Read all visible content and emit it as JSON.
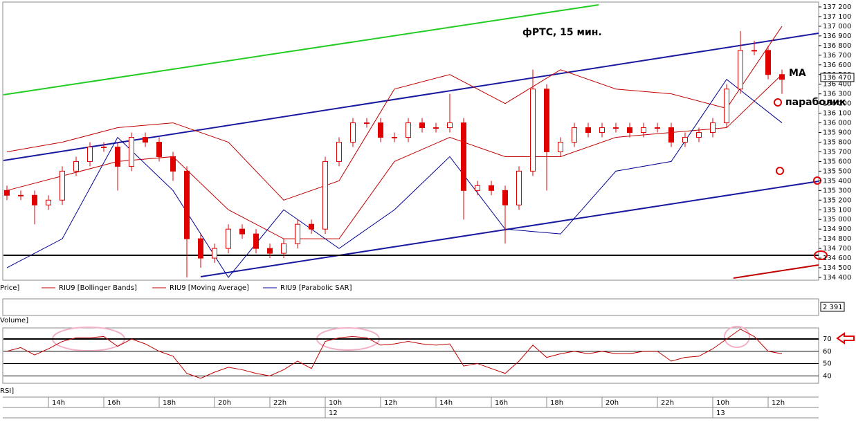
{
  "chart_data": [
    {
      "type": "candlestick",
      "title": "фРТС,  15 мин.",
      "panel_label": "Price]",
      "x": [
        0,
        2,
        4,
        6,
        8,
        10,
        12,
        14,
        16,
        18,
        20,
        22,
        24,
        26,
        28,
        30,
        32,
        34,
        36,
        38,
        40,
        42,
        44,
        46,
        48,
        50,
        52,
        54,
        56,
        58,
        60,
        62,
        64,
        66,
        68,
        70,
        72,
        74,
        76,
        78,
        80,
        82,
        84,
        86,
        88,
        90,
        92,
        94,
        96,
        98,
        100,
        102,
        104,
        106,
        108,
        110,
        112
      ],
      "open": [
        135300,
        135250,
        135250,
        135150,
        135200,
        135500,
        135600,
        135750,
        135750,
        135550,
        135850,
        135800,
        135650,
        135500,
        134800,
        134600,
        134700,
        134900,
        134850,
        134700,
        134650,
        134750,
        134950,
        134900,
        135600,
        135800,
        136000,
        136000,
        135850,
        135850,
        136000,
        135950,
        135950,
        136000,
        135300,
        135350,
        135300,
        135150,
        135500,
        136350,
        135700,
        135800,
        135950,
        135900,
        135950,
        135950,
        135900,
        135950,
        135950,
        135800,
        135850,
        135900,
        136000,
        136350,
        136750,
        136750,
        136500
      ],
      "high": [
        135350,
        135300,
        135300,
        135250,
        135550,
        135650,
        135800,
        135800,
        135800,
        135900,
        135900,
        135850,
        135700,
        135550,
        134850,
        134750,
        134950,
        134950,
        134900,
        134750,
        134800,
        135000,
        135000,
        135650,
        135850,
        136050,
        136050,
        136050,
        135900,
        136050,
        136050,
        136000,
        136300,
        136050,
        135400,
        135400,
        135350,
        135550,
        136550,
        136400,
        135850,
        136000,
        136000,
        136000,
        136000,
        136000,
        136000,
        136000,
        136000,
        135900,
        135950,
        136050,
        136400,
        136950,
        136850,
        136800,
        136550
      ],
      "low": [
        135200,
        135200,
        134950,
        135100,
        135150,
        135450,
        135550,
        135700,
        135300,
        135500,
        135750,
        135600,
        135400,
        134400,
        134500,
        134550,
        134650,
        134800,
        134650,
        134600,
        134600,
        134700,
        134850,
        134850,
        135550,
        135750,
        135950,
        135800,
        135800,
        135800,
        135900,
        135900,
        135900,
        135000,
        135250,
        135250,
        134750,
        135100,
        135450,
        135300,
        135650,
        135750,
        135850,
        135850,
        135900,
        135850,
        135850,
        135900,
        135750,
        135750,
        135800,
        135850,
        135950,
        136300,
        136700,
        136450,
        136300
      ],
      "close": [
        135250,
        135250,
        135150,
        135200,
        135500,
        135600,
        135750,
        135750,
        135550,
        135850,
        135800,
        135650,
        135500,
        134800,
        134600,
        134700,
        134900,
        134850,
        134700,
        134650,
        134750,
        134950,
        134900,
        135600,
        135800,
        136000,
        136000,
        135850,
        135850,
        136000,
        135950,
        135950,
        136000,
        135300,
        135350,
        135300,
        135150,
        135500,
        136350,
        135700,
        135800,
        135950,
        135900,
        135950,
        135950,
        135900,
        135950,
        135950,
        135800,
        135850,
        135900,
        136000,
        136350,
        136750,
        136750,
        136500,
        136450
      ],
      "color": "#e00000",
      "overlays": [
        {
          "name": "RIU9 [Bollinger Bands]",
          "color": "#c00000",
          "x": [
            0,
            8,
            16,
            24,
            32,
            40,
            48,
            56,
            64,
            72,
            80,
            88,
            96,
            104,
            112
          ],
          "values": [
            135700,
            135800,
            135950,
            136000,
            135800,
            135200,
            135400,
            136350,
            136500,
            136200,
            136550,
            136350,
            136300,
            136150,
            137000
          ]
        },
        {
          "name": "RIU9 [Moving Average]",
          "color": "#c00000",
          "x": [
            0,
            8,
            16,
            24,
            32,
            40,
            48,
            56,
            64,
            72,
            80,
            88,
            96,
            104,
            112
          ],
          "values": [
            135300,
            135450,
            135600,
            135650,
            135100,
            134800,
            134800,
            135600,
            135850,
            135650,
            135650,
            135850,
            135900,
            135950,
            136500
          ]
        },
        {
          "name": "RIU9 [Parabolic SAR]",
          "color": "#000090",
          "x": [
            0,
            8,
            16,
            24,
            32,
            40,
            48,
            56,
            64,
            72,
            80,
            88,
            96,
            104,
            112
          ],
          "values": [
            134500,
            134800,
            135850,
            135300,
            134400,
            135100,
            134700,
            135100,
            135650,
            134900,
            134850,
            135500,
            135600,
            136450,
            136000
          ]
        }
      ],
      "xlim": [
        -0.5,
        117
      ],
      "ylim": [
        134400,
        137200
      ],
      "yticks": [
        {
          "value": 134400,
          "label": "134 400"
        },
        {
          "value": 134500,
          "label": "134 500"
        },
        {
          "value": 134600,
          "label": "134 600"
        },
        {
          "value": 134700,
          "label": "134 700"
        },
        {
          "value": 134800,
          "label": "134 800"
        },
        {
          "value": 134900,
          "label": "134 900"
        },
        {
          "value": 135000,
          "label": "135 000"
        },
        {
          "value": 135100,
          "label": "135 100"
        },
        {
          "value": 135200,
          "label": "135 200"
        },
        {
          "value": 135300,
          "label": "135 300"
        },
        {
          "value": 135400,
          "label": "135 400"
        },
        {
          "value": 135500,
          "label": "135 500"
        },
        {
          "value": 135600,
          "label": "135 600"
        },
        {
          "value": 135700,
          "label": "135 700"
        },
        {
          "value": 135800,
          "label": "135 800"
        },
        {
          "value": 135900,
          "label": "135 900"
        },
        {
          "value": 136000,
          "label": "136 000"
        },
        {
          "value": 136100,
          "label": "136 100"
        },
        {
          "value": 136200,
          "label": "136 200"
        },
        {
          "value": 136300,
          "label": "136 300"
        },
        {
          "value": 136400,
          "label": "136 400"
        },
        {
          "value": 136500,
          "label": "136 500"
        },
        {
          "value": 136600,
          "label": "136 600"
        },
        {
          "value": 136700,
          "label": "136 700"
        },
        {
          "value": 136800,
          "label": "136 800"
        },
        {
          "value": 136900,
          "label": "136 900"
        },
        {
          "value": 137000,
          "label": "137 000"
        },
        {
          "value": 137100,
          "label": "137 100"
        },
        {
          "value": 137200,
          "label": "137 200"
        }
      ],
      "last_price": {
        "value": 136470,
        "label": "136 470"
      },
      "annotations": [
        "MA",
        "параболик"
      ]
    },
    {
      "type": "volume",
      "panel_label": "Volume]",
      "last_value": {
        "value": 2391,
        "label": "2 391"
      }
    },
    {
      "type": "line",
      "panel_label": "RSI]",
      "color": "#c00000",
      "x": [
        0,
        2,
        4,
        6,
        8,
        10,
        12,
        14,
        16,
        18,
        20,
        22,
        24,
        26,
        28,
        30,
        32,
        34,
        36,
        38,
        40,
        42,
        44,
        46,
        48,
        50,
        52,
        54,
        56,
        58,
        60,
        62,
        64,
        66,
        68,
        70,
        72,
        74,
        76,
        78,
        80,
        82,
        84,
        86,
        88,
        90,
        92,
        94,
        96,
        98,
        100,
        102,
        104,
        106,
        108,
        110,
        112
      ],
      "values": [
        60,
        63,
        57,
        62,
        68,
        71,
        71,
        72,
        64,
        70,
        66,
        60,
        56,
        42,
        38,
        43,
        47,
        45,
        42,
        40,
        45,
        52,
        46,
        68,
        71,
        72,
        71,
        65,
        66,
        68,
        66,
        65,
        66,
        48,
        50,
        46,
        42,
        52,
        65,
        55,
        58,
        60,
        58,
        60,
        58,
        58,
        60,
        60,
        52,
        55,
        56,
        62,
        70,
        78,
        72,
        60,
        58
      ],
      "xlim": [
        -0.5,
        117
      ],
      "ylim": [
        34,
        79
      ],
      "yticks": [
        40,
        50,
        60,
        70
      ],
      "xticks": [
        {
          "value": 7,
          "label": "14h"
        },
        {
          "value": 15,
          "label": "16h"
        },
        {
          "value": 23,
          "label": "18h"
        },
        {
          "value": 31,
          "label": "20h"
        },
        {
          "value": 39,
          "label": "22h"
        },
        {
          "value": 47,
          "label": "10h"
        },
        {
          "value": 55,
          "label": "12h"
        },
        {
          "value": 63,
          "label": "14h"
        },
        {
          "value": 71,
          "label": "16h"
        },
        {
          "value": 79,
          "label": "18h"
        },
        {
          "value": 87,
          "label": "20h"
        },
        {
          "value": 95,
          "label": "22h"
        },
        {
          "value": 103,
          "label": "10h"
        },
        {
          "value": 111,
          "label": "12h"
        }
      ],
      "day_labels": [
        {
          "value": 47,
          "label": "12"
        },
        {
          "value": 103,
          "label": "13"
        }
      ]
    }
  ]
}
